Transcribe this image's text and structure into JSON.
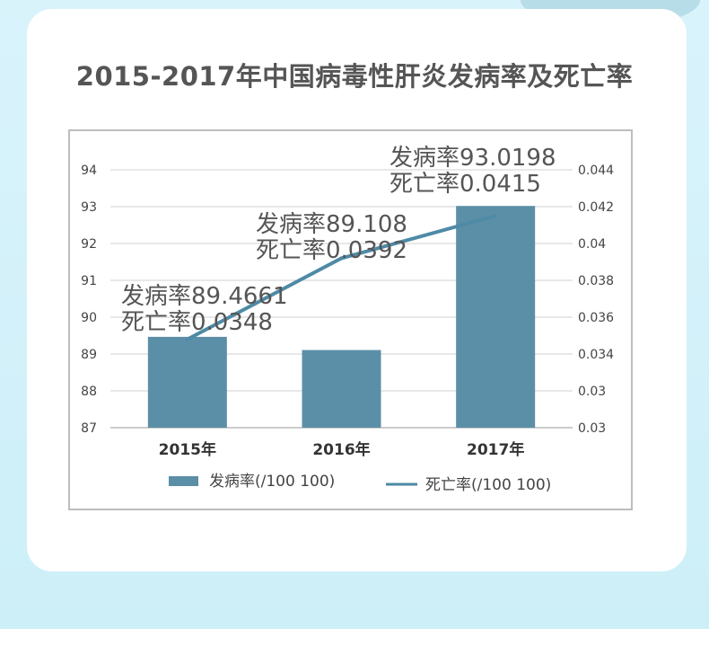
{
  "title": "2015-2017年中国病毒性肝炎发病率及死亡率",
  "colors": {
    "bar": "#5b8fa8",
    "line": "#4e8aa6",
    "grid": "#d0d0d0",
    "text": "#444444"
  },
  "chart_data": {
    "type": "bar",
    "title": "2015-2017年中国病毒性肝炎发病率及死亡率",
    "categories": [
      "2015年",
      "2016年",
      "2017年"
    ],
    "y_left": {
      "ylim": [
        87,
        94
      ],
      "tick_labels": [
        "87",
        "88",
        "89",
        "90",
        "91",
        "92",
        "93",
        "94"
      ]
    },
    "y_right": {
      "ylim": [
        0.03,
        0.044
      ],
      "tick_labels": [
        "0.03",
        "0.03",
        "0.034",
        "0.036",
        "0.038",
        "0.04",
        "0.042",
        "0.044"
      ]
    },
    "series": [
      {
        "name": "发病率(/100 100)",
        "type": "bar",
        "axis": "left",
        "values": [
          89.4661,
          89.108,
          93.0198
        ]
      },
      {
        "name": "死亡率(/100 100)",
        "type": "line",
        "axis": "right",
        "values": [
          0.0348,
          0.0392,
          0.0415
        ]
      }
    ],
    "annotations": [
      {
        "line1": "发病率89.4661",
        "line2": "死亡率0.0348"
      },
      {
        "line1": "发病率89.108",
        "line2": "死亡率0.0392"
      },
      {
        "line1": "发病率93.0198",
        "line2": "死亡率0.0415"
      }
    ],
    "legend": {
      "position": "bottom",
      "labels": [
        "发病率(/100 100)",
        "死亡率(/100 100)"
      ]
    },
    "grid": true
  }
}
